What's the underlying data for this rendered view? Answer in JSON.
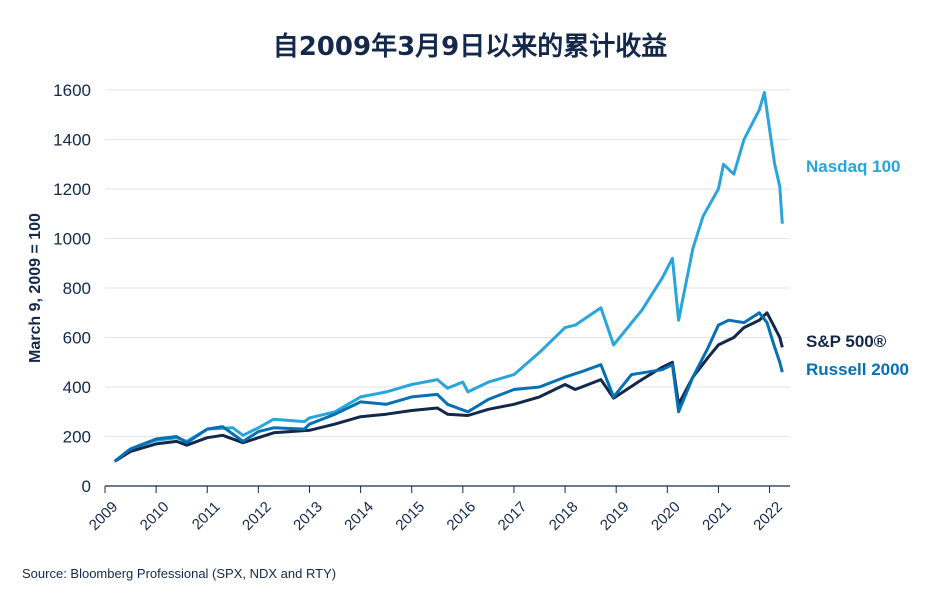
{
  "title": "自2009年3月9日以来的累计收益",
  "source": "Source: Bloomberg Professional (SPX, NDX and RTY)",
  "chart_data": {
    "type": "line",
    "title": "自2009年3月9日以来的累计收益",
    "ylabel": "March 9, 2009 = 100",
    "xlabel": "",
    "ylim": [
      0,
      1600
    ],
    "xlim": [
      2009.0,
      2022.4
    ],
    "yticks": [
      0,
      200,
      400,
      600,
      800,
      1000,
      1200,
      1400,
      1600
    ],
    "xticks": [
      "2009",
      "2010",
      "2011",
      "2012",
      "2013",
      "2014",
      "2015",
      "2016",
      "2017",
      "2018",
      "2019",
      "2020",
      "2021",
      "2022"
    ],
    "grid": "horizontal",
    "legend": "direct labels at right end of lines",
    "series": [
      {
        "name": "Nasdaq 100",
        "color": "#2aa4dc",
        "points": [
          [
            2009.19,
            100
          ],
          [
            2009.5,
            150
          ],
          [
            2010.0,
            185
          ],
          [
            2010.4,
            195
          ],
          [
            2010.6,
            180
          ],
          [
            2011.0,
            230
          ],
          [
            2011.5,
            235
          ],
          [
            2011.7,
            205
          ],
          [
            2012.0,
            235
          ],
          [
            2012.3,
            270
          ],
          [
            2012.9,
            260
          ],
          [
            2013.0,
            275
          ],
          [
            2013.5,
            300
          ],
          [
            2014.0,
            360
          ],
          [
            2014.5,
            380
          ],
          [
            2015.0,
            410
          ],
          [
            2015.5,
            430
          ],
          [
            2015.7,
            395
          ],
          [
            2016.0,
            420
          ],
          [
            2016.1,
            380
          ],
          [
            2016.5,
            420
          ],
          [
            2017.0,
            450
          ],
          [
            2017.5,
            540
          ],
          [
            2018.0,
            640
          ],
          [
            2018.2,
            650
          ],
          [
            2018.7,
            720
          ],
          [
            2018.95,
            570
          ],
          [
            2019.5,
            710
          ],
          [
            2019.9,
            840
          ],
          [
            2020.1,
            920
          ],
          [
            2020.22,
            670
          ],
          [
            2020.5,
            960
          ],
          [
            2020.7,
            1090
          ],
          [
            2021.0,
            1200
          ],
          [
            2021.1,
            1300
          ],
          [
            2021.3,
            1260
          ],
          [
            2021.5,
            1400
          ],
          [
            2021.8,
            1520
          ],
          [
            2021.9,
            1590
          ],
          [
            2022.0,
            1440
          ],
          [
            2022.1,
            1300
          ],
          [
            2022.2,
            1210
          ],
          [
            2022.25,
            1060
          ]
        ]
      },
      {
        "name": "S&P 500®",
        "color": "#13284a",
        "points": [
          [
            2009.19,
            100
          ],
          [
            2009.5,
            140
          ],
          [
            2010.0,
            170
          ],
          [
            2010.4,
            180
          ],
          [
            2010.6,
            165
          ],
          [
            2011.0,
            195
          ],
          [
            2011.3,
            205
          ],
          [
            2011.7,
            175
          ],
          [
            2012.0,
            195
          ],
          [
            2012.3,
            215
          ],
          [
            2013.0,
            225
          ],
          [
            2013.5,
            250
          ],
          [
            2014.0,
            280
          ],
          [
            2014.5,
            290
          ],
          [
            2015.0,
            305
          ],
          [
            2015.5,
            315
          ],
          [
            2015.7,
            290
          ],
          [
            2016.1,
            285
          ],
          [
            2016.5,
            310
          ],
          [
            2017.0,
            330
          ],
          [
            2017.5,
            360
          ],
          [
            2018.0,
            410
          ],
          [
            2018.2,
            390
          ],
          [
            2018.7,
            430
          ],
          [
            2018.95,
            355
          ],
          [
            2019.5,
            430
          ],
          [
            2019.9,
            480
          ],
          [
            2020.1,
            500
          ],
          [
            2020.22,
            330
          ],
          [
            2020.5,
            440
          ],
          [
            2020.8,
            520
          ],
          [
            2021.0,
            570
          ],
          [
            2021.3,
            600
          ],
          [
            2021.5,
            640
          ],
          [
            2021.8,
            670
          ],
          [
            2021.95,
            700
          ],
          [
            2022.1,
            640
          ],
          [
            2022.2,
            600
          ],
          [
            2022.25,
            560
          ]
        ]
      },
      {
        "name": "Russell 2000",
        "color": "#0570b3",
        "points": [
          [
            2009.19,
            100
          ],
          [
            2009.5,
            150
          ],
          [
            2010.0,
            190
          ],
          [
            2010.4,
            200
          ],
          [
            2010.6,
            175
          ],
          [
            2011.0,
            230
          ],
          [
            2011.3,
            240
          ],
          [
            2011.7,
            180
          ],
          [
            2012.0,
            220
          ],
          [
            2012.3,
            235
          ],
          [
            2012.9,
            230
          ],
          [
            2013.0,
            250
          ],
          [
            2013.5,
            290
          ],
          [
            2014.0,
            340
          ],
          [
            2014.5,
            330
          ],
          [
            2015.0,
            360
          ],
          [
            2015.5,
            370
          ],
          [
            2015.7,
            330
          ],
          [
            2016.1,
            300
          ],
          [
            2016.5,
            350
          ],
          [
            2017.0,
            390
          ],
          [
            2017.5,
            400
          ],
          [
            2018.0,
            440
          ],
          [
            2018.3,
            460
          ],
          [
            2018.7,
            490
          ],
          [
            2018.95,
            360
          ],
          [
            2019.3,
            450
          ],
          [
            2019.9,
            470
          ],
          [
            2020.1,
            490
          ],
          [
            2020.22,
            300
          ],
          [
            2020.5,
            440
          ],
          [
            2020.8,
            560
          ],
          [
            2021.0,
            650
          ],
          [
            2021.2,
            670
          ],
          [
            2021.5,
            660
          ],
          [
            2021.8,
            700
          ],
          [
            2021.95,
            660
          ],
          [
            2022.1,
            560
          ],
          [
            2022.2,
            500
          ],
          [
            2022.25,
            460
          ]
        ]
      }
    ]
  }
}
